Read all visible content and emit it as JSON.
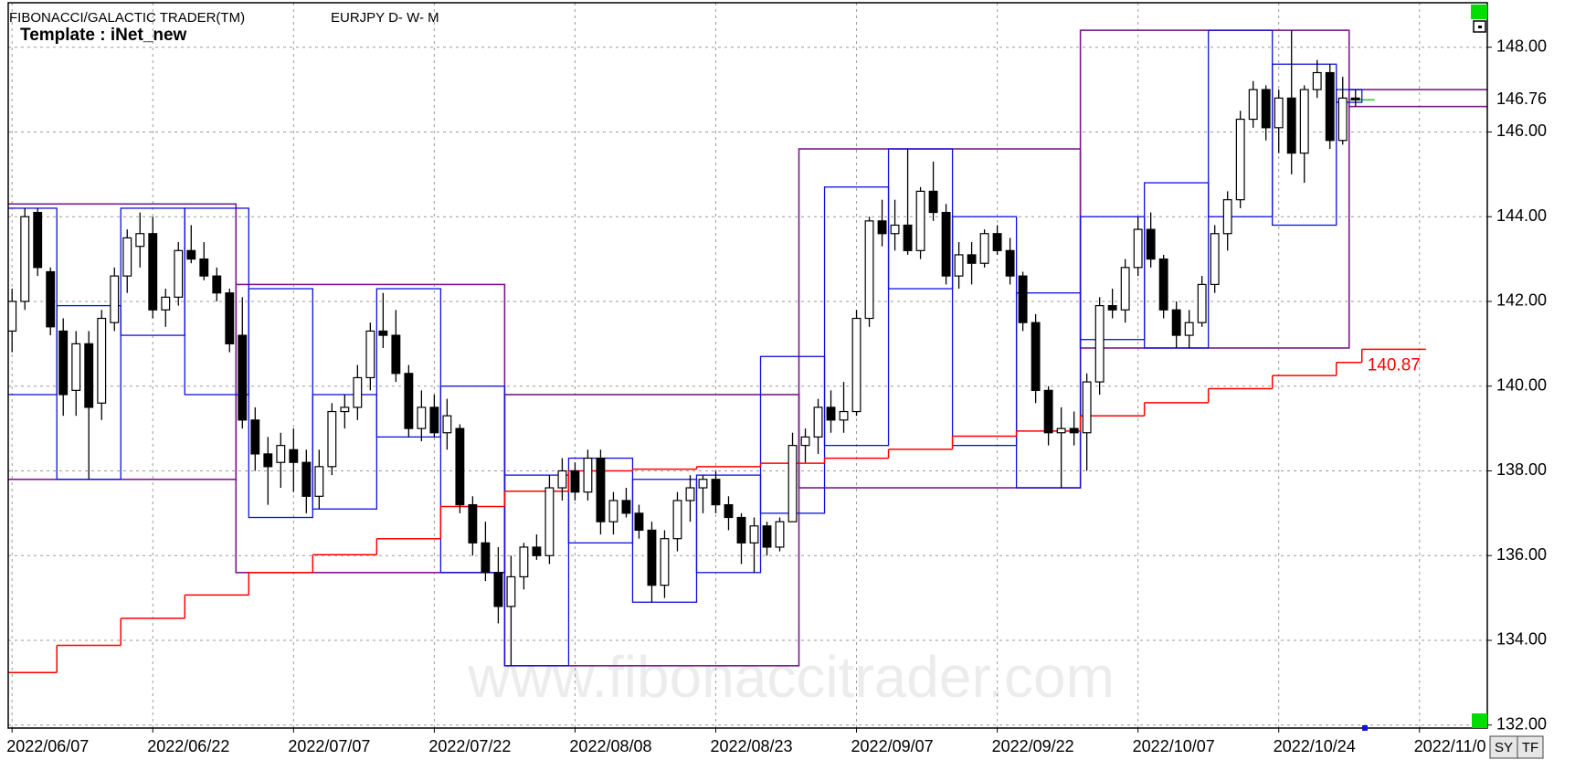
{
  "chart_data": {
    "type": "candlestick",
    "title": "FIBONACCI/GALACTIC TRADER(TM)",
    "subtitle": "EURJPY D- W- M",
    "template": "Template : iNet_new",
    "watermark": "www.fibonaccitrader.com",
    "buttons": [
      "SY",
      "TF"
    ],
    "grid": true,
    "up_color": "#ffffff",
    "down_color": "#000000",
    "xlim": [
      -0.3,
      115.3
    ],
    "ylim": [
      131.93,
      149.05
    ],
    "yticks": [
      {
        "value": 132,
        "label": "132.00"
      },
      {
        "value": 134,
        "label": "134.00"
      },
      {
        "value": 136,
        "label": "136.00"
      },
      {
        "value": 138,
        "label": "138.00"
      },
      {
        "value": 140,
        "label": "140.00"
      },
      {
        "value": 142,
        "label": "142.00"
      },
      {
        "value": 144,
        "label": "144.00"
      },
      {
        "value": 146,
        "label": "146.00"
      },
      {
        "value": 148,
        "label": "148.00"
      }
    ],
    "xticks": [
      {
        "value": 0,
        "label": "2022/06/07"
      },
      {
        "value": 11,
        "label": "2022/06/22"
      },
      {
        "value": 22,
        "label": "2022/07/07"
      },
      {
        "value": 33,
        "label": "2022/07/22"
      },
      {
        "value": 44,
        "label": "2022/08/08"
      },
      {
        "value": 55,
        "label": "2022/08/23"
      },
      {
        "value": 66,
        "label": "2022/09/07"
      },
      {
        "value": 77,
        "label": "2022/09/22"
      },
      {
        "value": 88,
        "label": "2022/10/07"
      },
      {
        "value": 99,
        "label": "2022/10/24"
      },
      {
        "value": 110,
        "label": "2022/11/0"
      }
    ],
    "last_price": 146.76,
    "open": [
      141.3,
      142.0,
      144.1,
      142.7,
      141.3,
      139.9,
      141.0,
      139.6,
      141.5,
      142.6,
      143.3,
      143.6,
      141.8,
      142.1,
      143.2,
      143.0,
      142.6,
      142.2,
      141.2,
      139.2,
      138.4,
      138.2,
      138.5,
      138.2,
      137.4,
      138.1,
      139.4,
      139.5,
      140.2,
      141.3,
      141.2,
      140.3,
      139.0,
      139.5,
      138.9,
      139.0,
      137.2,
      136.3,
      135.6,
      134.8,
      135.5,
      136.2,
      136.0,
      137.6,
      138.0,
      137.5,
      138.3,
      136.8,
      137.3,
      137.0,
      136.6,
      135.3,
      136.4,
      137.3,
      137.6,
      137.8,
      137.2,
      136.9,
      136.3,
      136.7,
      136.2,
      136.8,
      138.6,
      138.8,
      139.5,
      139.2,
      139.4,
      141.6,
      143.9,
      143.6,
      143.8,
      143.2,
      144.6,
      144.1,
      142.6,
      143.1,
      142.9,
      143.6,
      143.2,
      142.6,
      141.5,
      139.9,
      138.9,
      139.0,
      138.9,
      140.1,
      141.9,
      141.8,
      142.8,
      143.7,
      143.0,
      141.8,
      141.2,
      141.5,
      142.4,
      143.6,
      144.4,
      146.3,
      147.0,
      146.1,
      146.8,
      145.5,
      147.0,
      147.4,
      145.8,
      146.8
    ],
    "high": [
      142.3,
      144.2,
      144.2,
      142.8,
      141.6,
      141.3,
      141.3,
      141.8,
      142.8,
      143.7,
      144.1,
      144.0,
      142.3,
      143.4,
      143.8,
      143.4,
      142.8,
      142.3,
      142.1,
      139.5,
      138.8,
      138.9,
      139.0,
      138.5,
      138.5,
      139.6,
      139.8,
      140.5,
      141.5,
      142.2,
      141.8,
      140.5,
      139.9,
      139.8,
      139.7,
      139.1,
      137.4,
      136.8,
      136.2,
      136.0,
      136.3,
      136.5,
      137.9,
      138.3,
      138.2,
      138.5,
      138.5,
      137.5,
      137.6,
      137.2,
      136.8,
      136.6,
      137.5,
      137.9,
      137.9,
      138.0,
      137.4,
      137.0,
      136.9,
      136.8,
      136.9,
      138.9,
      139.0,
      139.7,
      139.9,
      140.1,
      141.8,
      144.0,
      144.4,
      144.4,
      145.6,
      144.7,
      145.3,
      144.3,
      143.4,
      143.4,
      143.7,
      143.8,
      143.5,
      142.7,
      141.7,
      140.0,
      139.5,
      139.4,
      140.3,
      142.1,
      142.3,
      143.0,
      144.0,
      144.1,
      143.1,
      142.0,
      141.8,
      142.6,
      143.8,
      144.6,
      146.5,
      147.2,
      147.1,
      147.0,
      148.4,
      147.1,
      147.7,
      147.6,
      147.3,
      147.0
    ],
    "low": [
      140.8,
      141.8,
      142.6,
      141.2,
      139.3,
      139.3,
      137.8,
      139.2,
      141.3,
      142.2,
      142.8,
      141.6,
      141.4,
      141.9,
      142.9,
      142.5,
      142.0,
      140.8,
      139.0,
      138.0,
      137.2,
      137.6,
      137.5,
      137.0,
      137.1,
      137.9,
      139.0,
      139.2,
      139.9,
      140.9,
      140.1,
      138.8,
      138.7,
      138.8,
      138.5,
      137.0,
      136.0,
      135.4,
      134.4,
      133.4,
      135.2,
      135.9,
      135.8,
      137.3,
      137.3,
      137.3,
      136.5,
      136.5,
      136.9,
      136.4,
      134.9,
      135.0,
      136.1,
      136.8,
      137.0,
      137.0,
      136.6,
      135.8,
      135.6,
      136.0,
      136.1,
      136.8,
      138.2,
      138.4,
      138.9,
      138.9,
      139.3,
      141.4,
      143.3,
      143.2,
      143.1,
      143.0,
      143.9,
      142.4,
      142.3,
      142.4,
      142.8,
      143.1,
      142.4,
      141.3,
      139.6,
      138.6,
      137.6,
      138.6,
      138.0,
      139.8,
      141.6,
      141.5,
      142.6,
      142.8,
      141.6,
      140.9,
      140.9,
      141.4,
      142.2,
      143.2,
      144.2,
      146.1,
      145.8,
      145.5,
      145.0,
      144.8,
      146.8,
      145.6,
      145.7,
      146.6
    ],
    "close": [
      142.0,
      144.0,
      142.8,
      141.4,
      139.8,
      141.0,
      139.5,
      141.6,
      142.6,
      143.5,
      143.6,
      141.8,
      142.1,
      143.2,
      143.0,
      142.6,
      142.2,
      141.0,
      139.2,
      138.4,
      138.1,
      138.6,
      138.2,
      137.4,
      138.1,
      139.4,
      139.5,
      140.2,
      141.3,
      141.2,
      140.3,
      139.0,
      139.5,
      138.9,
      139.3,
      137.2,
      136.3,
      135.6,
      134.8,
      135.5,
      136.2,
      136.0,
      137.6,
      138.0,
      137.5,
      138.3,
      136.8,
      137.3,
      137.0,
      136.6,
      135.3,
      136.4,
      137.3,
      137.6,
      137.8,
      137.2,
      136.9,
      136.3,
      136.7,
      136.2,
      136.8,
      138.6,
      138.8,
      139.5,
      139.2,
      139.4,
      141.6,
      143.9,
      143.6,
      143.8,
      143.2,
      144.6,
      144.1,
      142.6,
      143.1,
      142.9,
      143.6,
      143.2,
      142.6,
      141.5,
      139.9,
      138.9,
      139.0,
      138.9,
      140.1,
      141.9,
      141.8,
      142.8,
      143.7,
      143.0,
      141.8,
      141.2,
      141.5,
      142.4,
      143.6,
      144.4,
      146.3,
      147.0,
      146.1,
      146.8,
      145.5,
      147.0,
      147.4,
      145.8,
      146.8,
      146.76
    ],
    "weekly_ranges": {
      "color": "#1010e0",
      "from": [
        0,
        4,
        9,
        14,
        19,
        24,
        29,
        34,
        39,
        44,
        49,
        54,
        59,
        64,
        69,
        74,
        79,
        84,
        89,
        94,
        99,
        104
      ],
      "to": [
        3,
        8,
        13,
        18,
        23,
        28,
        33,
        38,
        43,
        48,
        53,
        58,
        63,
        68,
        73,
        78,
        83,
        88,
        93,
        98,
        103,
        105
      ],
      "high": [
        144.2,
        141.9,
        144.2,
        144.2,
        142.3,
        139.8,
        142.3,
        140.0,
        137.9,
        138.3,
        137.8,
        137.9,
        140.7,
        144.7,
        145.6,
        144.0,
        142.2,
        144.0,
        144.8,
        148.4,
        147.6,
        147.0
      ],
      "low": [
        139.8,
        137.8,
        141.2,
        139.8,
        136.9,
        137.1,
        138.8,
        135.6,
        133.4,
        136.3,
        134.9,
        135.6,
        137.0,
        138.6,
        142.3,
        138.6,
        137.6,
        141.1,
        140.9,
        144.0,
        143.8,
        146.7
      ]
    },
    "monthly_ranges": {
      "color": "#7a1a8a",
      "from": [
        0,
        18,
        39,
        62,
        84,
        105
      ],
      "to": [
        17,
        38,
        61,
        83,
        104,
        105
      ],
      "high": [
        144.3,
        142.4,
        139.8,
        145.6,
        148.4,
        147.0
      ],
      "low": [
        137.8,
        135.6,
        133.4,
        137.6,
        140.9,
        146.6
      ]
    },
    "trail": {
      "color": "#ff0000",
      "values": [
        133.24,
        133.88,
        134.52,
        135.07,
        135.6,
        136.02,
        136.4,
        137.16,
        137.52,
        138.0,
        138.04,
        138.1,
        138.18,
        138.3,
        138.51,
        138.82,
        138.94,
        139.3,
        139.61,
        139.94,
        140.25,
        140.56,
        140.87
      ]
    }
  }
}
